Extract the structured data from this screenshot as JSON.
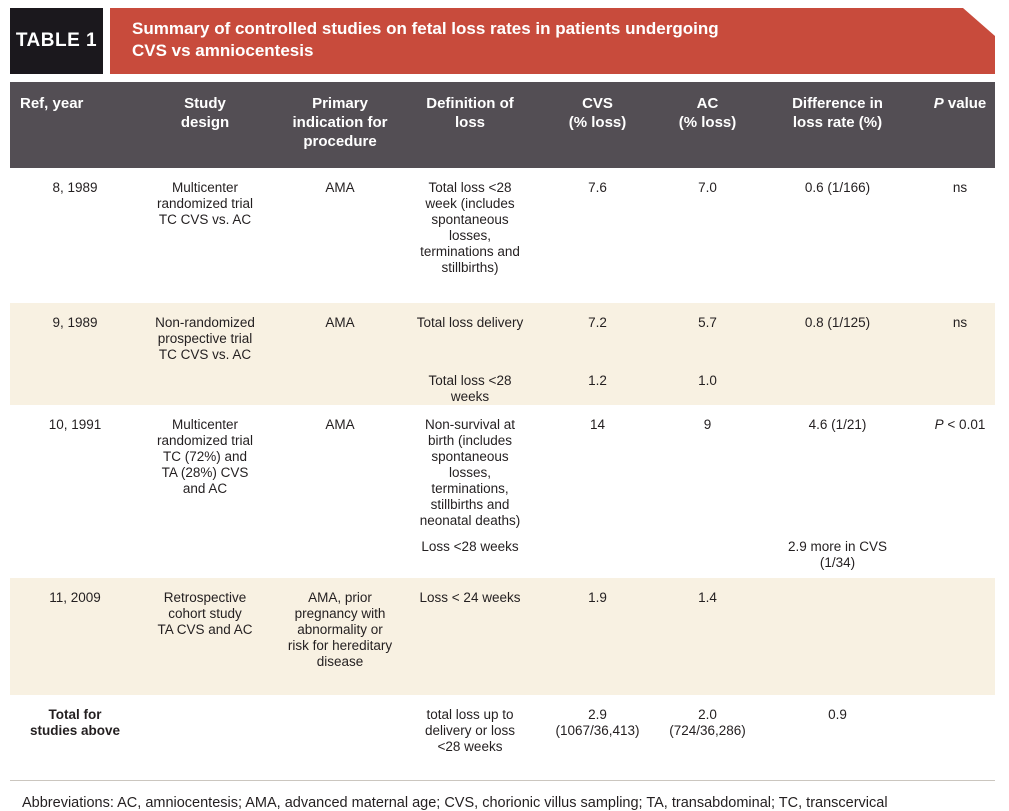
{
  "colors": {
    "accent_red": "#c84b3c",
    "label_black": "#1b181d",
    "header_gray": "#534e54",
    "row_beige": "#f8f1e2",
    "text_dark": "#231f20"
  },
  "title_bar": {
    "label": "TABLE 1",
    "title": "Summary of controlled studies on fetal loss rates in patients undergoing\nCVS vs amniocentesis"
  },
  "columns": [
    "Ref, year",
    "Study\ndesign",
    "Primary\nindication for\nprocedure",
    "Definition of\nloss",
    "CVS\n(% loss)",
    "AC\n(% loss)",
    "Difference in\nloss rate (%)"
  ],
  "p_header": {
    "prefix": "P",
    "rest": " value"
  },
  "rows": [
    {
      "ref": "8, 1989",
      "design": "Multicenter\nrandomized trial\nTC CVS vs. AC",
      "indication": "AMA",
      "definition": "Total loss <28\nweek (includes\nspontaneous\nlosses,\nterminations and\nstillbirths)",
      "cvs": "7.6",
      "ac": "7.0",
      "diff": "0.6 (1/166)",
      "p": "ns"
    },
    {
      "ref": "9, 1989",
      "design": "Non-randomized\nprospective trial\nTC CVS vs. AC",
      "indication": "AMA",
      "definition": "Total loss delivery",
      "cvs": "7.2",
      "ac": "5.7",
      "diff": "0.8 (1/125)",
      "p": "ns",
      "definition2": "Total loss <28\nweeks",
      "cvs2": "1.2",
      "ac2": "1.0"
    },
    {
      "ref": "10, 1991",
      "design": "Multicenter\nrandomized trial\nTC (72%) and\nTA (28%) CVS\nand AC",
      "indication": "AMA",
      "definition": "Non-survival at\nbirth (includes\nspontaneous\nlosses,\nterminations,\nstillbirths and\nneonatal deaths)",
      "cvs": "14",
      "ac": "9",
      "diff": "4.6 (1/21)",
      "p_prefix": "P",
      "p_rest": " < 0.01",
      "definition2": "Loss <28 weeks",
      "diff2": "2.9 more in CVS\n(1/34)"
    },
    {
      "ref": "11, 2009",
      "design": "Retrospective\ncohort study\nTA CVS and AC",
      "indication": "AMA, prior\npregnancy with\nabnormality or\nrisk for hereditary\ndisease",
      "definition": "Loss < 24 weeks",
      "cvs": "1.9",
      "ac": "1.4"
    }
  ],
  "total_row": {
    "ref": "Total for\nstudies above",
    "definition": "total loss up to\ndelivery or loss\n<28 weeks",
    "cvs": "2.9\n(1067/36,413)",
    "ac": "2.0\n(724/36,286)",
    "diff": "0.9"
  },
  "footnote": "Abbreviations: AC, amniocentesis; AMA, advanced maternal age; CVS, chorionic villus sampling; TA, transabdominal; TC, transcervical"
}
